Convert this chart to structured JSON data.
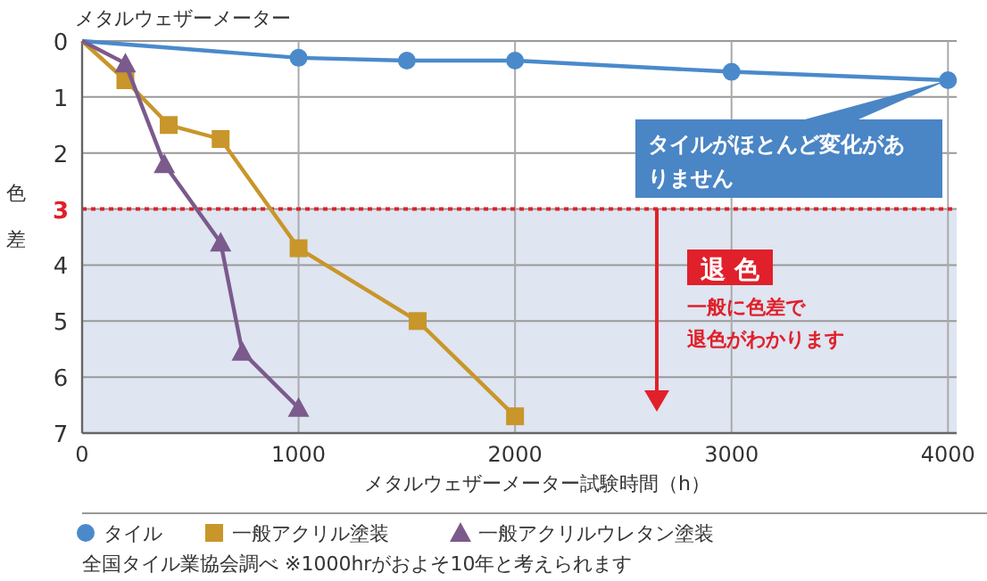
{
  "chart_data": {
    "type": "line",
    "title": "メタルウェザーメーター",
    "xlabel": "メタルウェザーメーター試験時間（h）",
    "ylabel": "色差",
    "xlim": [
      0,
      4040
    ],
    "xticks": [
      0,
      1000,
      2000,
      3000,
      4000
    ],
    "ylim": [
      7,
      0
    ],
    "yticks": [
      0,
      1,
      2,
      3,
      4,
      5,
      6,
      7
    ],
    "grid": true,
    "legend": "bottom",
    "series": [
      {
        "name": "タイル",
        "color": "#4a8acb",
        "marker": "circle",
        "x": [
          0,
          1000,
          1500,
          2000,
          3000,
          4000
        ],
        "values": [
          0,
          0.3,
          0.35,
          0.35,
          0.55,
          0.7
        ]
      },
      {
        "name": "一般アクリル塗装",
        "color": "#c8962a",
        "marker": "square",
        "x": [
          0,
          200,
          400,
          640,
          1000,
          1550,
          2000
        ],
        "values": [
          0,
          0.7,
          1.5,
          1.75,
          3.7,
          5.0,
          6.7
        ]
      },
      {
        "name": "一般アクリルウレタン塗装",
        "color": "#7b5a8c",
        "marker": "triangle",
        "x": [
          0,
          200,
          380,
          640,
          740,
          1000
        ],
        "values": [
          0,
          0.4,
          2.2,
          3.6,
          5.55,
          6.55
        ]
      }
    ],
    "ref_lines": [
      {
        "axis": "y",
        "value": 3,
        "color": "#e0202a",
        "line_style": "dotted"
      }
    ],
    "bands": [
      {
        "axis": "y",
        "from": 3,
        "to": 7,
        "color": "#dfe5f1"
      }
    ],
    "annotations": [
      {
        "text": "タイルがほとんど変化がありません",
        "x": 4000,
        "y": 0.7
      },
      "退 色",
      "一般に色差で退色がわかります",
      "全国タイル業協会調べ ※1000hrがおよそ10年と考えられます"
    ]
  }
}
